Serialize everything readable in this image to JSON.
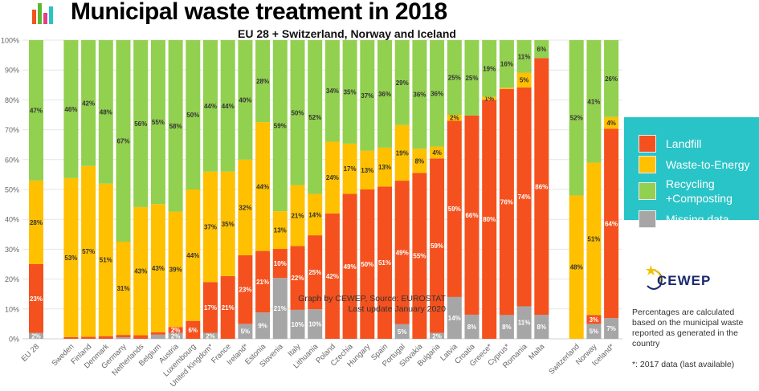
{
  "title": "Municipal waste treatment in 2018",
  "subtitle": "EU 28 + Switzerland, Norway and Iceland",
  "credit_line1": "Graph by CEWEP, Source: EUROSTAT",
  "credit_line2": "Last update January 2020",
  "logo_text": "CEWEP",
  "note": "Percentages are calculated based on the municipal waste reported as generated in the country",
  "footnote": "*: 2017 data (last available)",
  "legend": [
    {
      "label": "Landfill",
      "color": "#f4511e"
    },
    {
      "label": "Waste-to-Energy",
      "color": "#ffc000"
    },
    {
      "label": "Recycling +Composting",
      "color": "#92d050"
    },
    {
      "label": "Missing data",
      "color": "#a6a6a6"
    }
  ],
  "chart_data": {
    "type": "bar",
    "stacked": true,
    "title": "Municipal waste treatment in 2018",
    "subtitle": "EU 28 + Switzerland, Norway and Iceland",
    "ylim": [
      0,
      100
    ],
    "yticks": [
      "0%",
      "10%",
      "20%",
      "30%",
      "40%",
      "50%",
      "60%",
      "70%",
      "80%",
      "90%",
      "100%"
    ],
    "grid": true,
    "legend_position": "right",
    "categories": [
      "EU 28",
      "",
      "Sweden",
      "Finland",
      "Denmark",
      "Germany",
      "Netherlands",
      "Belgium",
      "Austria",
      "Luxembourg",
      "United Kingdom*",
      "France",
      "Ireland*",
      "Estonia",
      "Slovenia",
      "Italy",
      "Lithuania",
      "Poland",
      "Czechia",
      "Hungary",
      "Spain",
      "Portugal",
      "Slovakia",
      "Bulgaria",
      "Latvia",
      "Croatia",
      "Greece*",
      "Cyprus*",
      "Romania",
      "Malta",
      "",
      "Switzerland",
      "Norway",
      "Iceland*"
    ],
    "series": [
      {
        "name": "Missing data",
        "color": "#a6a6a6",
        "label_color": "#ffffff",
        "values": [
          2,
          null,
          0,
          0,
          0,
          0.5,
          0,
          1.4,
          2,
          0,
          2,
          0,
          5,
          9,
          21,
          10,
          10,
          0,
          0,
          0,
          0,
          5,
          0,
          2,
          14,
          8,
          0,
          8,
          11,
          8,
          null,
          0,
          5,
          7
        ]
      },
      {
        "name": "Landfill",
        "color": "#f4511e",
        "label_color": "#ffffff",
        "values": [
          23,
          null,
          0.6,
          0.7,
          0.9,
          0.8,
          1.2,
          0.8,
          2,
          6,
          17,
          21,
          23,
          21,
          10,
          22,
          25,
          42,
          49,
          50,
          51,
          49,
          55,
          59,
          59,
          66,
          80,
          76,
          74,
          86,
          null,
          0,
          3,
          64
        ]
      },
      {
        "name": "Waste-to-Energy",
        "color": "#ffc000",
        "label_color": "#333333",
        "values": [
          28,
          null,
          53,
          57,
          51,
          31,
          43,
          43,
          39,
          44,
          37,
          35,
          32,
          44,
          13,
          21,
          14,
          24,
          17,
          13,
          13,
          19,
          8,
          4,
          2,
          0,
          1,
          0.4,
          5,
          0,
          null,
          48,
          51,
          4
        ]
      },
      {
        "name": "Recycling +Composting",
        "color": "#92d050",
        "label_color": "#333333",
        "values": [
          47,
          null,
          46,
          42,
          48,
          67,
          56,
          55,
          58,
          50,
          44,
          44,
          40,
          28,
          59,
          50,
          52,
          34,
          35,
          37,
          36,
          29,
          36,
          36,
          25,
          25,
          19,
          16,
          11,
          6,
          null,
          52,
          41,
          26
        ]
      }
    ]
  }
}
